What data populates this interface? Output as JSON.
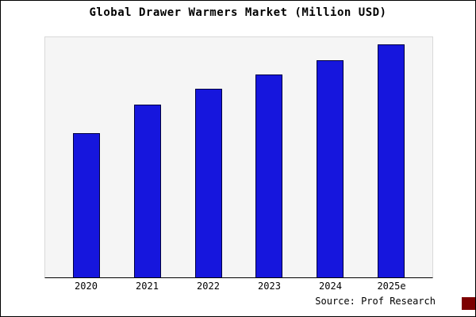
{
  "title": "Global Drawer Warmers Market (Million USD)",
  "source": "Source: Prof Research",
  "colors": {
    "bar_fill": "#1616dd",
    "bar_border": "#000040",
    "plot_bg": "#f5f5f5",
    "frame_border": "#000000",
    "badge": "#7d0000"
  },
  "chart_data": {
    "type": "bar",
    "categories": [
      "2020",
      "2021",
      "2022",
      "2023",
      "2024",
      "2025e"
    ],
    "values": [
      62,
      74,
      81,
      87,
      93,
      100
    ],
    "title": "Global Drawer Warmers Market (Million USD)",
    "xlabel": "",
    "ylabel": "",
    "ylim": [
      0,
      103
    ],
    "grid": false,
    "legend": "none",
    "value_basis": "no y-axis tick labels shown; values estimated relative with 2025e = 100"
  }
}
